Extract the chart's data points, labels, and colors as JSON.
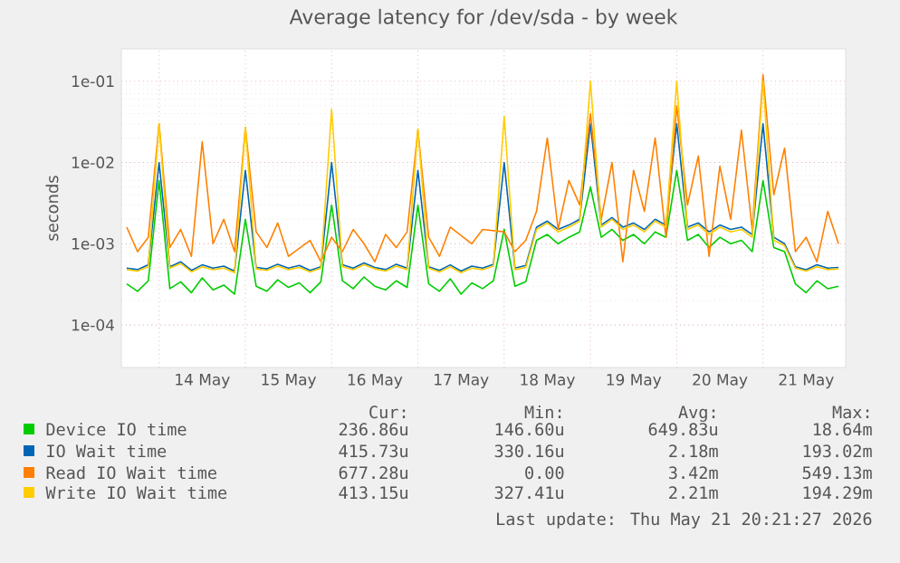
{
  "chart_data": {
    "type": "line",
    "title": "Average latency for /dev/sda - by week",
    "ylabel": "seconds",
    "log": "y",
    "grid": true,
    "legend": "bottom",
    "ylim": [
      3e-05,
      0.25
    ],
    "yticks": [
      {
        "value": 0.0001,
        "label": "1e-04"
      },
      {
        "value": 0.001,
        "label": "1e-03"
      },
      {
        "value": 0.01,
        "label": "1e-02"
      },
      {
        "value": 0.1,
        "label": "1e-01"
      }
    ],
    "xlim": [
      "2026-05-13T13:30",
      "2026-05-21T23:00"
    ],
    "xticks": [
      {
        "value": "2026-05-14",
        "label": null
      },
      {
        "value": "2026-05-14T12:00",
        "label": "14 May"
      },
      {
        "value": "2026-05-15",
        "label": null
      },
      {
        "value": "2026-05-15T12:00",
        "label": "15 May"
      },
      {
        "value": "2026-05-16",
        "label": null
      },
      {
        "value": "2026-05-16T12:00",
        "label": "16 May"
      },
      {
        "value": "2026-05-17",
        "label": null
      },
      {
        "value": "2026-05-17T12:00",
        "label": "17 May"
      },
      {
        "value": "2026-05-18",
        "label": null
      },
      {
        "value": "2026-05-18T12:00",
        "label": "18 May"
      },
      {
        "value": "2026-05-19",
        "label": null
      },
      {
        "value": "2026-05-19T12:00",
        "label": "19 May"
      },
      {
        "value": "2026-05-20",
        "label": null
      },
      {
        "value": "2026-05-20T12:00",
        "label": "20 May"
      },
      {
        "value": "2026-05-21",
        "label": null
      },
      {
        "value": "2026-05-21T12:00",
        "label": "21 May"
      }
    ],
    "x": [
      "2026-05-13T15:00",
      "2026-05-13T18:00",
      "2026-05-13T21:00",
      "2026-05-14T00:00",
      "2026-05-14T03:00",
      "2026-05-14T06:00",
      "2026-05-14T09:00",
      "2026-05-14T12:00",
      "2026-05-14T15:00",
      "2026-05-14T18:00",
      "2026-05-14T21:00",
      "2026-05-15T00:00",
      "2026-05-15T03:00",
      "2026-05-15T06:00",
      "2026-05-15T09:00",
      "2026-05-15T12:00",
      "2026-05-15T15:00",
      "2026-05-15T18:00",
      "2026-05-15T21:00",
      "2026-05-16T00:00",
      "2026-05-16T03:00",
      "2026-05-16T06:00",
      "2026-05-16T09:00",
      "2026-05-16T12:00",
      "2026-05-16T15:00",
      "2026-05-16T18:00",
      "2026-05-16T21:00",
      "2026-05-17T00:00",
      "2026-05-17T03:00",
      "2026-05-17T06:00",
      "2026-05-17T09:00",
      "2026-05-17T12:00",
      "2026-05-17T15:00",
      "2026-05-17T18:00",
      "2026-05-17T21:00",
      "2026-05-18T00:00",
      "2026-05-18T03:00",
      "2026-05-18T06:00",
      "2026-05-18T09:00",
      "2026-05-18T12:00",
      "2026-05-18T15:00",
      "2026-05-18T18:00",
      "2026-05-18T21:00",
      "2026-05-19T00:00",
      "2026-05-19T03:00",
      "2026-05-19T06:00",
      "2026-05-19T09:00",
      "2026-05-19T12:00",
      "2026-05-19T15:00",
      "2026-05-19T18:00",
      "2026-05-19T21:00",
      "2026-05-20T00:00",
      "2026-05-20T03:00",
      "2026-05-20T06:00",
      "2026-05-20T09:00",
      "2026-05-20T12:00",
      "2026-05-20T15:00",
      "2026-05-20T18:00",
      "2026-05-20T21:00",
      "2026-05-21T00:00",
      "2026-05-21T03:00",
      "2026-05-21T06:00",
      "2026-05-21T09:00",
      "2026-05-21T12:00",
      "2026-05-21T15:00",
      "2026-05-21T18:00",
      "2026-05-21T21:00"
    ],
    "series": [
      {
        "name": "Device IO time",
        "color": "#00cc00",
        "values": [
          0.00032,
          0.00026,
          0.00035,
          0.006,
          0.00028,
          0.00034,
          0.00025,
          0.00038,
          0.00027,
          0.00031,
          0.00024,
          0.002,
          0.0003,
          0.00026,
          0.00036,
          0.00029,
          0.00033,
          0.00025,
          0.00034,
          0.003,
          0.00035,
          0.00028,
          0.00039,
          0.0003,
          0.00027,
          0.00035,
          0.00029,
          0.003,
          0.00032,
          0.00026,
          0.00037,
          0.00024,
          0.00033,
          0.00028,
          0.00035,
          0.0015,
          0.0003,
          0.00034,
          0.0011,
          0.0013,
          0.001,
          0.0012,
          0.0014,
          0.005,
          0.0012,
          0.0015,
          0.0011,
          0.0013,
          0.001,
          0.0014,
          0.0012,
          0.008,
          0.0011,
          0.0013,
          0.0009,
          0.0012,
          0.001,
          0.0011,
          0.0008,
          0.006,
          0.0009,
          0.0008,
          0.00032,
          0.00025,
          0.00035,
          0.00028,
          0.0003
        ]
      },
      {
        "name": "IO Wait time",
        "color": "#0066b3",
        "values": [
          0.0005,
          0.00048,
          0.00055,
          0.01,
          0.00052,
          0.0006,
          0.00047,
          0.00055,
          0.0005,
          0.00053,
          0.00046,
          0.008,
          0.00051,
          0.00049,
          0.00056,
          0.0005,
          0.00054,
          0.00047,
          0.00052,
          0.01,
          0.00055,
          0.0005,
          0.00058,
          0.00051,
          0.00048,
          0.00056,
          0.0005,
          0.008,
          0.00052,
          0.00047,
          0.00055,
          0.00046,
          0.00053,
          0.0005,
          0.00056,
          0.01,
          0.0005,
          0.00054,
          0.0016,
          0.0019,
          0.0015,
          0.0017,
          0.002,
          0.03,
          0.0017,
          0.0021,
          0.0016,
          0.0018,
          0.0015,
          0.002,
          0.0017,
          0.03,
          0.0016,
          0.0018,
          0.0014,
          0.0017,
          0.0015,
          0.0016,
          0.0013,
          0.03,
          0.0012,
          0.001,
          0.00052,
          0.00048,
          0.00055,
          0.0005,
          0.00051
        ]
      },
      {
        "name": "Read IO Wait time",
        "color": "#ff8000",
        "values": [
          0.0016,
          0.0008,
          0.0012,
          0.03,
          0.0009,
          0.0015,
          0.0007,
          0.018,
          0.001,
          0.002,
          0.0008,
          0.027,
          0.0014,
          0.0009,
          0.0018,
          0.0007,
          null,
          0.0011,
          0.0006,
          0.0012,
          0.0008,
          0.0015,
          0.001,
          0.0006,
          0.0013,
          0.0009,
          0.0014,
          0.025,
          0.0012,
          0.0007,
          0.0016,
          null,
          0.001,
          0.0015,
          null,
          0.0014,
          0.0008,
          0.0011,
          0.0025,
          0.02,
          0.0015,
          0.006,
          0.003,
          0.04,
          0.002,
          0.01,
          0.0006,
          0.008,
          0.0025,
          0.02,
          0.0012,
          0.05,
          0.003,
          0.012,
          0.0007,
          0.009,
          0.002,
          0.025,
          0.0015,
          0.12,
          0.004,
          0.015,
          0.0008,
          0.0012,
          0.0006,
          0.0025,
          0.001
        ]
      },
      {
        "name": "Write IO Wait time",
        "color": "#ffcc00",
        "values": [
          0.00048,
          0.00046,
          0.00052,
          0.03,
          0.0005,
          0.00057,
          0.00045,
          0.00052,
          0.00048,
          0.0005,
          0.00044,
          0.027,
          0.00049,
          0.00047,
          0.00053,
          0.00048,
          0.00051,
          0.00045,
          0.0005,
          0.045,
          0.00052,
          0.00048,
          0.00055,
          0.00049,
          0.00046,
          0.00053,
          0.00048,
          0.026,
          0.0005,
          0.00045,
          0.00052,
          0.00044,
          0.0005,
          0.00048,
          0.00053,
          0.037,
          0.00048,
          0.00051,
          0.0015,
          0.0018,
          0.0014,
          0.0016,
          0.0019,
          0.1,
          0.0016,
          0.002,
          0.0015,
          0.0017,
          0.0014,
          0.0019,
          0.0016,
          0.1,
          0.0015,
          0.0017,
          0.0013,
          0.0016,
          0.0014,
          0.0015,
          0.0012,
          0.1,
          0.0011,
          0.00095,
          0.0005,
          0.00046,
          0.00052,
          0.00048,
          0.00049
        ]
      }
    ],
    "annotations": [
      "Cur:",
      "Min:",
      "Avg:",
      "Max:",
      "236.86u",
      "146.60u",
      "649.83u",
      "18.64m",
      "415.73u",
      "330.16u",
      "2.18m",
      "193.02m",
      "677.28u",
      "0.00",
      "3.42m",
      "549.13m",
      "413.15u",
      "327.41u",
      "2.21m",
      "194.29m",
      "Last update: Thu May 21 20:21:27 2026"
    ]
  }
}
